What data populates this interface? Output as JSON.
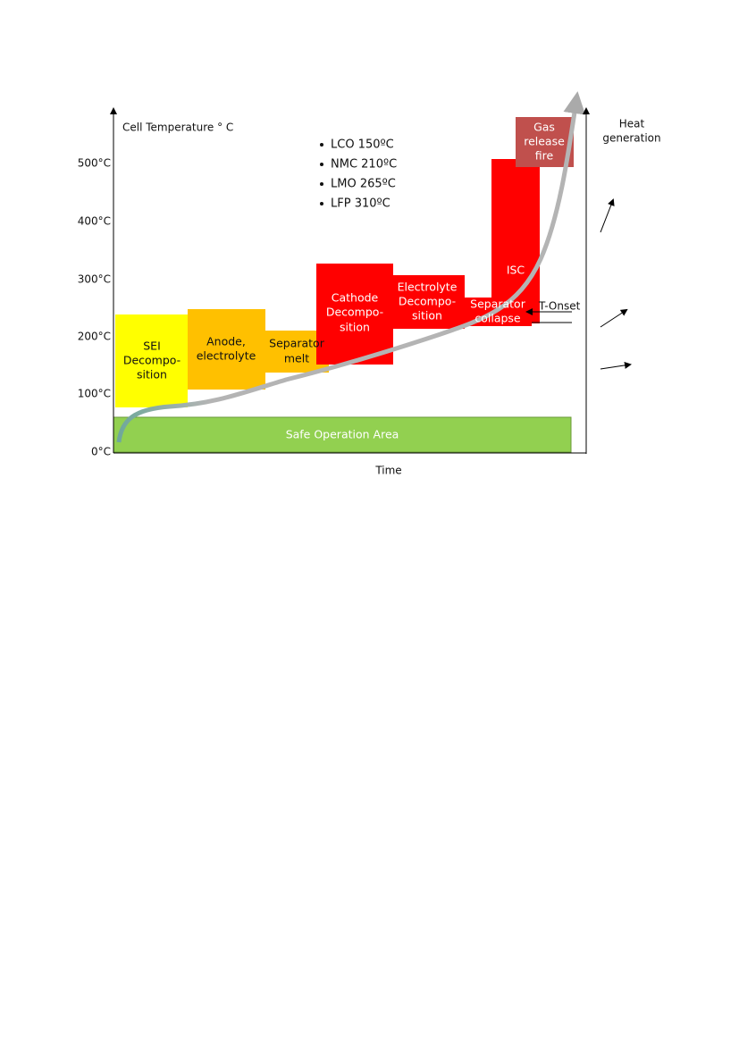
{
  "axis": {
    "y_label": "Cell Temperature ° C",
    "x_label": "Time",
    "right_label": [
      "Heat",
      "generation"
    ]
  },
  "y_ticks": [
    "500°C",
    "400°C",
    "300°C",
    "200°C",
    "100°C",
    "0°C"
  ],
  "onset_list": [
    "LCO 150ºC",
    "NMC 210ºC",
    "LMO 265ºC",
    "LFP 310ºC"
  ],
  "boxes": [
    {
      "lines": [
        "Safe Operation Area"
      ]
    },
    {
      "lines": [
        "SEI",
        "Decompo-",
        "sition"
      ]
    },
    {
      "lines": [
        "Anode,",
        "electrolyte"
      ]
    },
    {
      "lines": [
        "Separator",
        "melt"
      ]
    },
    {
      "lines": [
        "Cathode",
        "Decompo-",
        "sition"
      ]
    },
    {
      "lines": [
        "Electrolyte",
        "Decompo-",
        "sition"
      ]
    },
    {
      "lines": [
        "ISC"
      ]
    },
    {
      "lines": [
        "Separator",
        "collapse"
      ]
    },
    {
      "lines": [
        "Gas",
        "release",
        "fire"
      ]
    }
  ],
  "t_onset": "T-Onset"
}
